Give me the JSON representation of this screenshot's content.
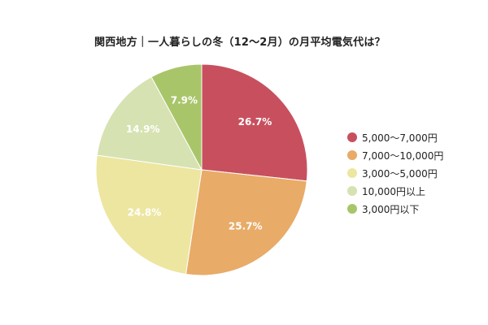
{
  "chart_data": {
    "type": "pie",
    "title": "関西地方｜一人暮らしの冬（12〜2月）の月平均電気代は？",
    "categories": [
      "5,000〜7,000円",
      "7,000〜10,000円",
      "3,000〜5,000円",
      "10,000円以上",
      "3,000円以下"
    ],
    "values": [
      26.7,
      25.7,
      24.8,
      14.9,
      7.9
    ],
    "value_labels": [
      "26.7%",
      "25.7%",
      "24.8%",
      "14.9%",
      "7.9%"
    ],
    "colors": [
      "#c8505e",
      "#e8ab68",
      "#ede6a1",
      "#d6e2b1",
      "#a9c56a"
    ],
    "legend_position": "right",
    "start_angle_deg": 0,
    "direction": "clockwise"
  }
}
